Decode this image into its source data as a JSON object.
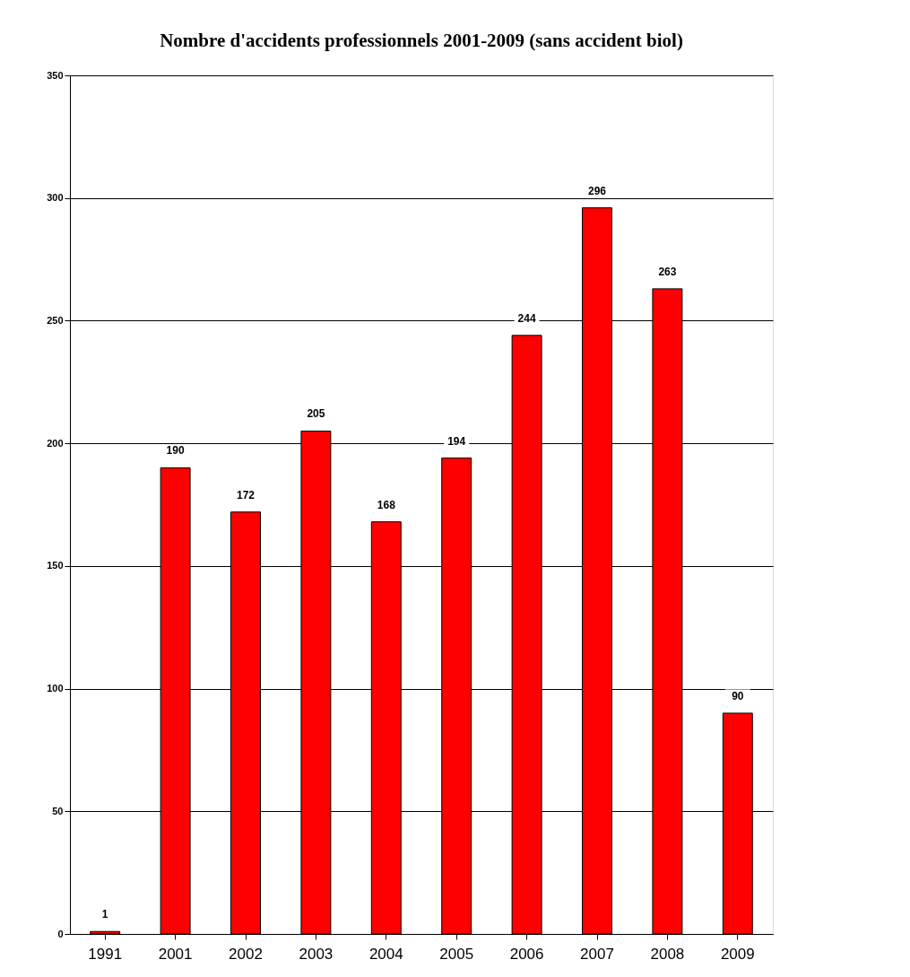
{
  "chart_data": {
    "type": "bar",
    "title": "Nombre d'accidents professionnels 2001-2009 (sans accident biol)",
    "categories": [
      "1991",
      "2001",
      "2002",
      "2003",
      "2004",
      "2005",
      "2006",
      "2007",
      "2008",
      "2009"
    ],
    "values": [
      1,
      190,
      172,
      205,
      168,
      194,
      244,
      296,
      263,
      90
    ],
    "color": "#ff0000",
    "ylim": [
      0,
      350
    ],
    "yticks": [
      0,
      50,
      100,
      150,
      200,
      250,
      300,
      350
    ],
    "grid": "y",
    "data_labels": true
  }
}
